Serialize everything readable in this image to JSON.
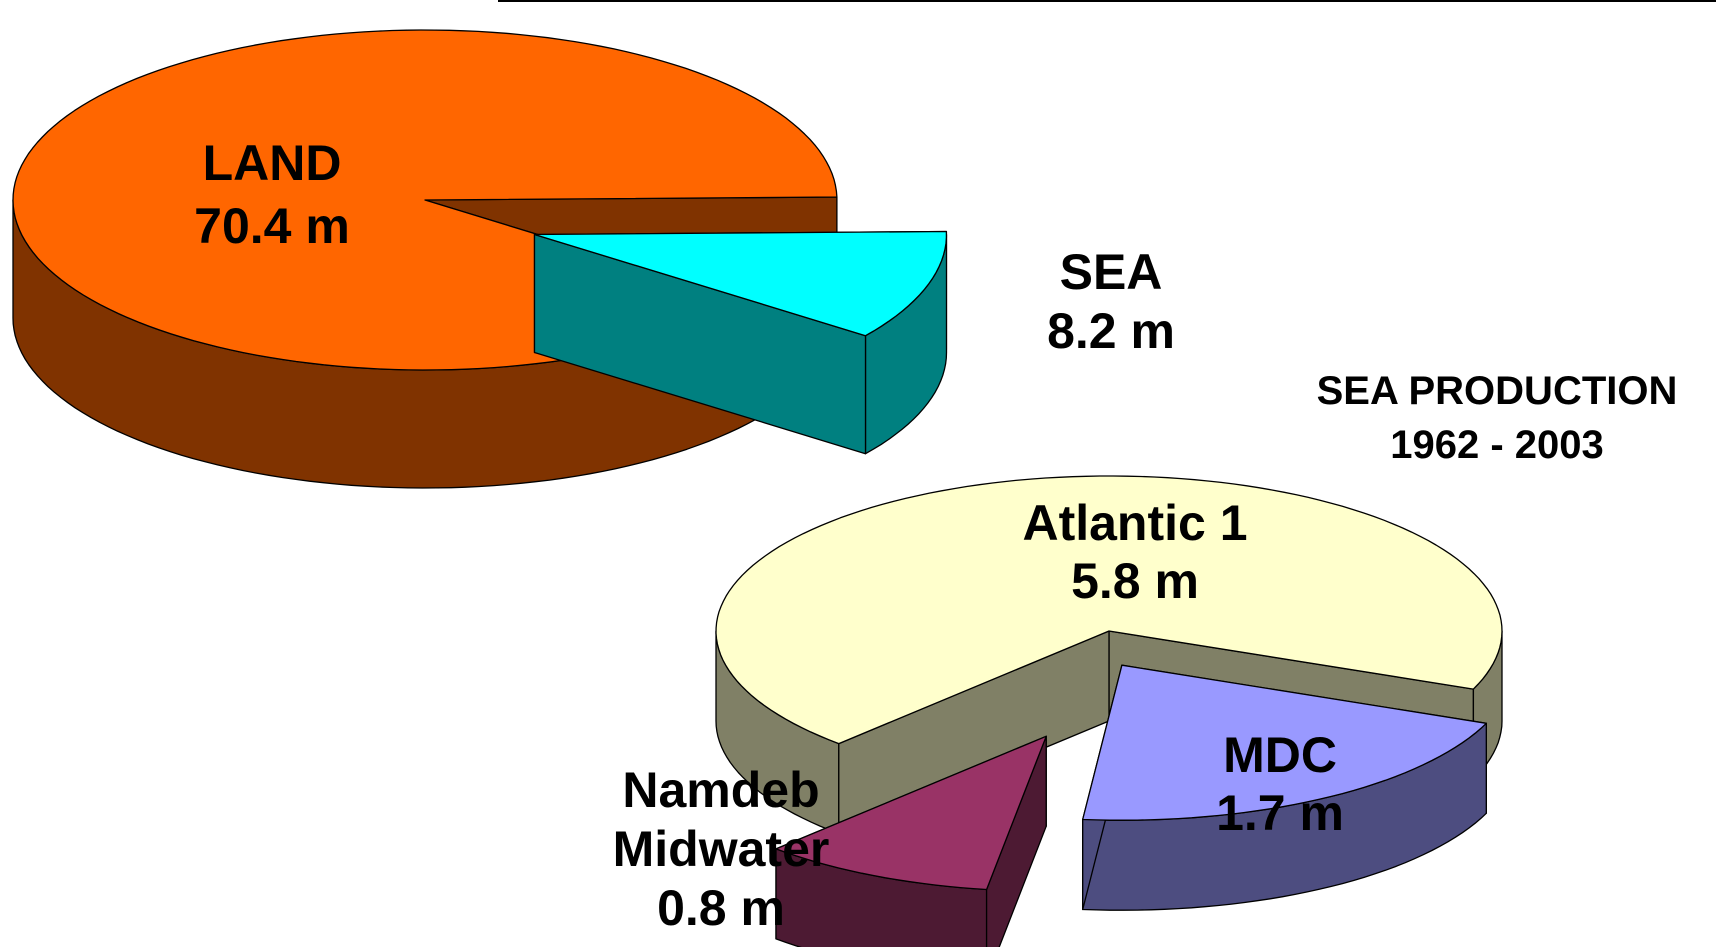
{
  "chart_data": [
    {
      "type": "pie",
      "title": "",
      "slices": [
        {
          "label_line1": "LAND",
          "label_line2": "70.4 m",
          "value": 70.4,
          "top_color": "#ff6600",
          "side_color": "#803300"
        },
        {
          "label_line1": "SEA",
          "label_line2": "8.2 m",
          "value": 8.2,
          "top_color": "#00ffff",
          "side_color": "#008080"
        }
      ]
    },
    {
      "type": "pie",
      "title_line1": "SEA PRODUCTION",
      "title_line2": "1962 - 2003",
      "slices": [
        {
          "label_line1": "Atlantic 1",
          "label_line2": "5.8 m",
          "value": 5.8,
          "top_color": "#ffffcc",
          "side_color": "#808066"
        },
        {
          "label_line1": "MDC",
          "label_line2": "1.7 m",
          "value": 1.7,
          "top_color": "#9999ff",
          "side_color": "#4d4d80"
        },
        {
          "label_line1": "Namdeb",
          "label_line2": "Midwater",
          "label_line3": "0.8 m",
          "value": 0.8,
          "top_color": "#993366",
          "side_color": "#4d1a33"
        }
      ]
    }
  ]
}
